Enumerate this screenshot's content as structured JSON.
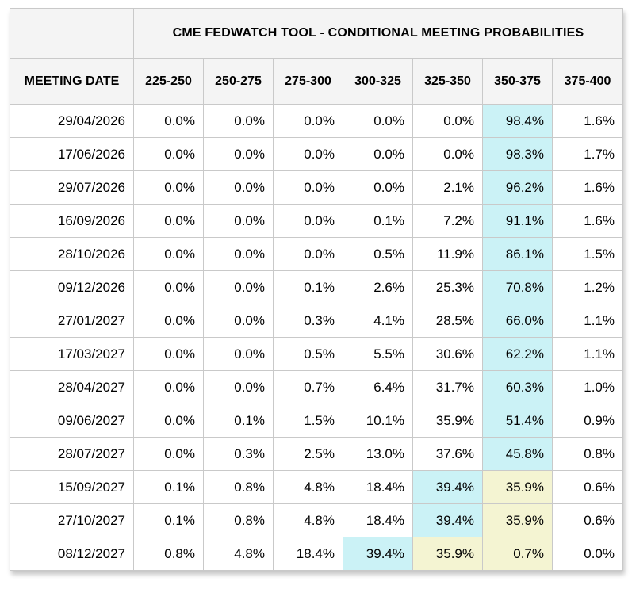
{
  "chart_data": {
    "type": "table",
    "title": "CME FEDWATCH TOOL - CONDITIONAL MEETING PROBABILITIES",
    "columns": [
      "MEETING DATE",
      "225-250",
      "250-275",
      "275-300",
      "300-325",
      "325-350",
      "350-375",
      "375-400"
    ],
    "rows": [
      {
        "date": "29/04/2026",
        "values": [
          "0.0%",
          "0.0%",
          "0.0%",
          "0.0%",
          "0.0%",
          "98.4%",
          "1.6%"
        ],
        "highlights": [
          "",
          "",
          "",
          "",
          "",
          "cyan",
          ""
        ]
      },
      {
        "date": "17/06/2026",
        "values": [
          "0.0%",
          "0.0%",
          "0.0%",
          "0.0%",
          "0.0%",
          "98.3%",
          "1.7%"
        ],
        "highlights": [
          "",
          "",
          "",
          "",
          "",
          "cyan",
          ""
        ]
      },
      {
        "date": "29/07/2026",
        "values": [
          "0.0%",
          "0.0%",
          "0.0%",
          "0.0%",
          "2.1%",
          "96.2%",
          "1.6%"
        ],
        "highlights": [
          "",
          "",
          "",
          "",
          "",
          "cyan",
          ""
        ]
      },
      {
        "date": "16/09/2026",
        "values": [
          "0.0%",
          "0.0%",
          "0.0%",
          "0.1%",
          "7.2%",
          "91.1%",
          "1.6%"
        ],
        "highlights": [
          "",
          "",
          "",
          "",
          "",
          "cyan",
          ""
        ]
      },
      {
        "date": "28/10/2026",
        "values": [
          "0.0%",
          "0.0%",
          "0.0%",
          "0.5%",
          "11.9%",
          "86.1%",
          "1.5%"
        ],
        "highlights": [
          "",
          "",
          "",
          "",
          "",
          "cyan",
          ""
        ]
      },
      {
        "date": "09/12/2026",
        "values": [
          "0.0%",
          "0.0%",
          "0.1%",
          "2.6%",
          "25.3%",
          "70.8%",
          "1.2%"
        ],
        "highlights": [
          "",
          "",
          "",
          "",
          "",
          "cyan",
          ""
        ]
      },
      {
        "date": "27/01/2027",
        "values": [
          "0.0%",
          "0.0%",
          "0.3%",
          "4.1%",
          "28.5%",
          "66.0%",
          "1.1%"
        ],
        "highlights": [
          "",
          "",
          "",
          "",
          "",
          "cyan",
          ""
        ]
      },
      {
        "date": "17/03/2027",
        "values": [
          "0.0%",
          "0.0%",
          "0.5%",
          "5.5%",
          "30.6%",
          "62.2%",
          "1.1%"
        ],
        "highlights": [
          "",
          "",
          "",
          "",
          "",
          "cyan",
          ""
        ]
      },
      {
        "date": "28/04/2027",
        "values": [
          "0.0%",
          "0.0%",
          "0.7%",
          "6.4%",
          "31.7%",
          "60.3%",
          "1.0%"
        ],
        "highlights": [
          "",
          "",
          "",
          "",
          "",
          "cyan",
          ""
        ]
      },
      {
        "date": "09/06/2027",
        "values": [
          "0.0%",
          "0.1%",
          "1.5%",
          "10.1%",
          "35.9%",
          "51.4%",
          "0.9%"
        ],
        "highlights": [
          "",
          "",
          "",
          "",
          "",
          "cyan",
          ""
        ]
      },
      {
        "date": "28/07/2027",
        "values": [
          "0.0%",
          "0.3%",
          "2.5%",
          "13.0%",
          "37.6%",
          "45.8%",
          "0.8%"
        ],
        "highlights": [
          "",
          "",
          "",
          "",
          "",
          "cyan",
          ""
        ]
      },
      {
        "date": "15/09/2027",
        "values": [
          "0.1%",
          "0.8%",
          "4.8%",
          "18.4%",
          "39.4%",
          "35.9%",
          "0.6%"
        ],
        "highlights": [
          "",
          "",
          "",
          "",
          "cyan",
          "yellow",
          ""
        ]
      },
      {
        "date": "27/10/2027",
        "values": [
          "0.1%",
          "0.8%",
          "4.8%",
          "18.4%",
          "39.4%",
          "35.9%",
          "0.6%"
        ],
        "highlights": [
          "",
          "",
          "",
          "",
          "cyan",
          "yellow",
          ""
        ]
      },
      {
        "date": "08/12/2027",
        "values": [
          "0.8%",
          "4.8%",
          "18.4%",
          "39.4%",
          "35.9%",
          "0.7%",
          "0.0%"
        ],
        "highlights": [
          "",
          "",
          "",
          "cyan",
          "yellow",
          "yellow",
          ""
        ]
      }
    ],
    "colors": {
      "highlight_primary": "#cbf2f6",
      "highlight_secondary": "#f4f4d2",
      "header_bg": "#f4f4f4",
      "border": "#c9c9c9"
    },
    "layout": {
      "grid": true,
      "legend": "none",
      "value_alignment": "right",
      "header_alignment": "center"
    }
  }
}
